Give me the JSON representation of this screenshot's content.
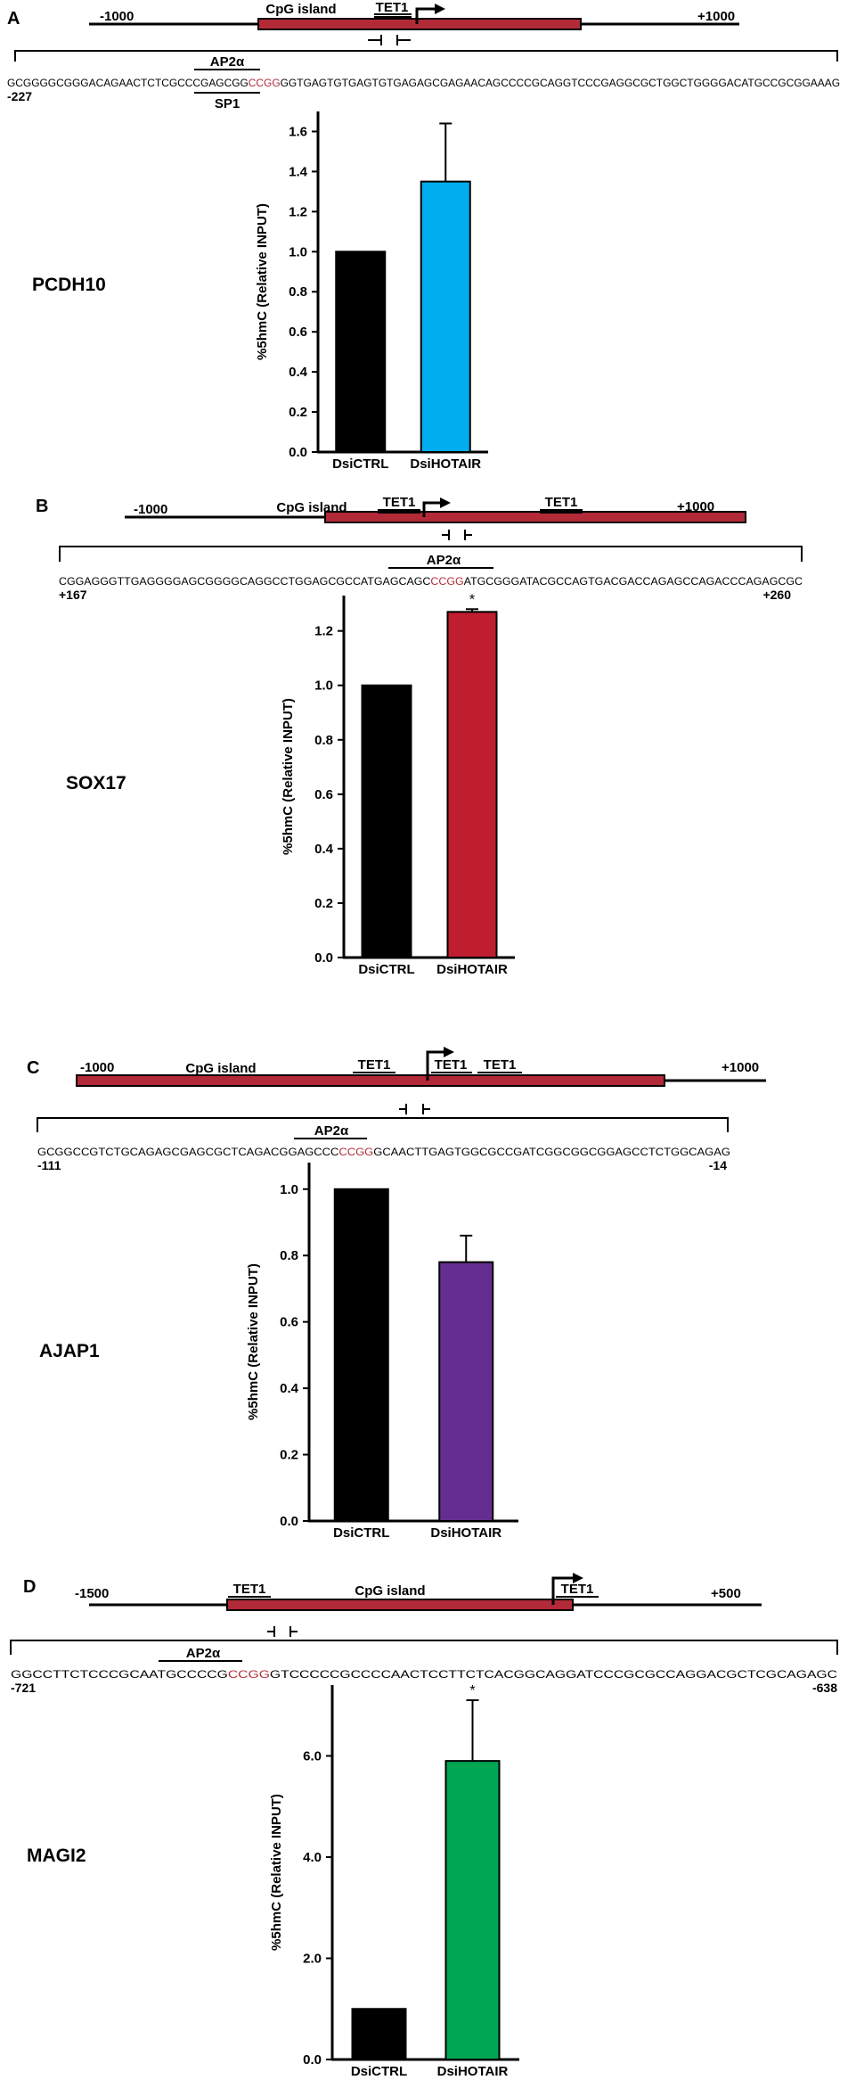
{
  "colors": {
    "island": "#b22a38",
    "cpg_site": "#b22a38",
    "black": "#000000"
  },
  "panels": [
    {
      "letter": "A",
      "gene": "PCDH10",
      "left_coord": "-1000",
      "right_coord": "+1000",
      "island_label": "CpG island",
      "tet_labels": [
        "TET1"
      ],
      "motifs": [
        {
          "label": "AP2α"
        },
        {
          "label": "SP1"
        }
      ],
      "seq_before": "GCGGGGCGGGACAGAACTCTCGCCCGAGCGG",
      "seq_site": "CCGG",
      "seq_after": "GGTGAGTGTGAGTGTGAGAGCGAGAACAGCCCCGCAGGTCCCGAGGCGCTGGCTGGGGACATGCCGCGGAAAG",
      "seq_start": "-227",
      "seq_end": ""
    },
    {
      "letter": "B",
      "gene": "SOX17",
      "left_coord": "-1000",
      "right_coord": "+1000",
      "island_label": "CpG island",
      "tet_labels": [
        "TET1",
        "TET1"
      ],
      "motifs": [
        {
          "label": "AP2α"
        }
      ],
      "seq_before": "CGGAGGGTTGAGGGGAGCGGGGCAGGCCTGGAGCGCCATGAGCAGC",
      "seq_site": "CCGG",
      "seq_after": "ATGCGGGATACGCCAGTGACGACCAGAGCCAGACCCAGAGCGC",
      "seq_start": "+167",
      "seq_end": "+260"
    },
    {
      "letter": "C",
      "gene": "AJAP1",
      "left_coord": "-1000",
      "right_coord": "+1000",
      "island_label": "CpG island",
      "tet_labels": [
        "TET1",
        "TET1",
        "TET1"
      ],
      "motifs": [
        {
          "label": "AP2α"
        }
      ],
      "seq_before": "GCGGCCGTCTGCAGAGCGAGCGCTCAGACGGAGCCC",
      "seq_site": "CCGG",
      "seq_after": "GCAACTTGAGTGGCGCCGATCGGCGGCGGAGCCTCTGGCAGAG",
      "seq_start": "-111",
      "seq_end": "-14"
    },
    {
      "letter": "D",
      "gene": "MAGI2",
      "left_coord": "-1500",
      "right_coord": "+500",
      "island_label": "CpG island",
      "tet_labels": [
        "TET1",
        "TET1"
      ],
      "motifs": [
        {
          "label": "AP2α"
        }
      ],
      "seq_before": "GGCCTTCTCCCGCAATGCCCCG",
      "seq_site": "CCGG",
      "seq_after": "GTCCCCCGCCCCAACTCCTTCTCACGGCAGGATCCCGCGCCAGGACGCTCGCAGAGC",
      "seq_start": "-721",
      "seq_end": "-638"
    }
  ],
  "chart_data": [
    {
      "type": "bar",
      "ylabel": "%5hmC (Relative INPUT)",
      "categories": [
        "DsiCTRL",
        "DsiHOTAIR"
      ],
      "values": [
        1.0,
        1.35
      ],
      "errors": [
        0,
        0.29
      ],
      "colors": [
        "#000000",
        "#00aeef"
      ],
      "significance": [
        "",
        ""
      ],
      "ylim": [
        0,
        1.7
      ],
      "yticks": [
        "0.0",
        "0.2",
        "0.4",
        "0.6",
        "0.8",
        "1.0",
        "1.2",
        "1.4",
        "1.6"
      ]
    },
    {
      "type": "bar",
      "ylabel": "%5hmC (Relative INPUT)",
      "categories": [
        "DsiCTRL",
        "DsiHOTAIR"
      ],
      "values": [
        1.0,
        1.27
      ],
      "errors": [
        0,
        0.01
      ],
      "colors": [
        "#000000",
        "#bf1e2e"
      ],
      "significance": [
        "",
        "*"
      ],
      "ylim": [
        0,
        1.33
      ],
      "yticks": [
        "0.0",
        "0.2",
        "0.4",
        "0.6",
        "0.8",
        "1.0",
        "1.2"
      ]
    },
    {
      "type": "bar",
      "ylabel": "%5hmC (Relative INPUT)",
      "categories": [
        "DsiCTRL",
        "DsiHOTAIR"
      ],
      "values": [
        1.0,
        0.78
      ],
      "errors": [
        0,
        0.08
      ],
      "colors": [
        "#000000",
        "#662d91"
      ],
      "significance": [
        "",
        ""
      ],
      "ylim": [
        0,
        1.08
      ],
      "yticks": [
        "0.0",
        "0.2",
        "0.4",
        "0.6",
        "0.8",
        "1.0"
      ]
    },
    {
      "type": "bar",
      "ylabel": "%5hmC (Relative INPUT)",
      "categories": [
        "DsiCTRL",
        "DsiHOTAIR"
      ],
      "values": [
        1.0,
        5.9
      ],
      "errors": [
        0,
        1.2
      ],
      "colors": [
        "#000000",
        "#00a651"
      ],
      "significance": [
        "",
        "*"
      ],
      "ylim": [
        0,
        7.4
      ],
      "yticks": [
        "0.0",
        "2.0",
        "4.0",
        "6.0"
      ]
    }
  ]
}
